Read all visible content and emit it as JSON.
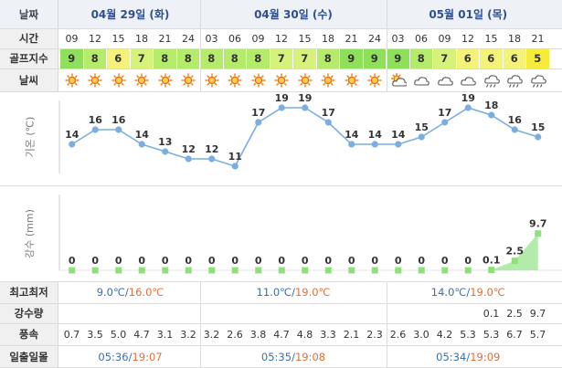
{
  "labels": {
    "date": "날짜",
    "time": "시간",
    "golf": "골프지수",
    "weather": "날씨",
    "temp_axis": "기온 (℃)",
    "rain_axis": "강수 (mm)",
    "minmax": "최고최저",
    "rain_amount": "강수량",
    "wind": "풍속",
    "sun": "일출일몰"
  },
  "dates": [
    "04월 29일 (화)",
    "04월 30일 (수)",
    "05월 01일 (목)"
  ],
  "times": [
    "09",
    "12",
    "15",
    "18",
    "21",
    "24",
    "03",
    "06",
    "09",
    "12",
    "15",
    "18",
    "21",
    "24",
    "03",
    "06",
    "09",
    "12",
    "15",
    "18",
    "21"
  ],
  "golf_index": [
    "9",
    "8",
    "6",
    "7",
    "8",
    "8",
    "8",
    "8",
    "8",
    "7",
    "7",
    "8",
    "9",
    "9",
    "9",
    "8",
    "7",
    "6",
    "6",
    "6",
    "5"
  ],
  "weather_icons": [
    "sun-icon",
    "sun-icon",
    "sun-icon",
    "sun-icon",
    "sun-icon",
    "sun-icon",
    "sun-icon",
    "sun-icon",
    "sun-icon",
    "sun-icon",
    "sun-icon",
    "sun-icon",
    "sun-icon",
    "sun-icon",
    "partly-cloudy-icon",
    "cloud-icon",
    "cloud-icon",
    "cloud-icon",
    "rain-cloud-icon",
    "rain-cloud-icon",
    "rain-cloud-icon"
  ],
  "colors": {
    "golf": {
      "9": "#8ee05a",
      "8": "#b5eb6a",
      "7": "#d7f27a",
      "6": "#f5f27a",
      "5": "#f5ec3a"
    },
    "temp_line": "#7aaee0",
    "rain_fill": "#a6e79b",
    "rain_marker": "#8fe07a"
  },
  "temp_chart": {
    "y_ticks": [
      "20",
      "10"
    ],
    "ylim": [
      10,
      20
    ],
    "values": [
      14,
      16,
      16,
      14,
      13,
      12,
      12,
      11,
      17,
      19,
      19,
      17,
      14,
      14,
      14,
      15,
      17,
      19,
      18,
      16,
      15
    ],
    "labels": [
      "14",
      "16",
      "16",
      "14",
      "13",
      "12",
      "12",
      "11",
      "17",
      "19",
      "19",
      "17",
      "14",
      "14",
      "14",
      "15",
      "17",
      "19",
      "18",
      "16",
      "15"
    ]
  },
  "rain_chart": {
    "y_ticks": [
      "20",
      "10",
      "0"
    ],
    "ylim": [
      0,
      20
    ],
    "values": [
      0,
      0,
      0,
      0,
      0,
      0,
      0,
      0,
      0,
      0,
      0,
      0,
      0,
      0,
      0,
      0,
      0,
      0,
      0.1,
      2.5,
      9.7
    ],
    "labels": [
      "0",
      "0",
      "0",
      "0",
      "0",
      "0",
      "0",
      "0",
      "0",
      "0",
      "0",
      "0",
      "0",
      "0",
      "0",
      "0",
      "0",
      "0",
      "0.1",
      "2.5",
      "9.7"
    ]
  },
  "minmax": [
    {
      "lo": "9.0℃",
      "sep": "/",
      "hi": "16.0℃"
    },
    {
      "lo": "11.0℃",
      "sep": "/",
      "hi": "19.0℃"
    },
    {
      "lo": "14.0℃",
      "sep": "/",
      "hi": "19.0℃"
    }
  ],
  "rain_amount": [
    "",
    "",
    "",
    "",
    "",
    "",
    "",
    "",
    "",
    "",
    "",
    "",
    "",
    "",
    "",
    "",
    "",
    "",
    "0.1",
    "2.5",
    "9.7"
  ],
  "wind": [
    "0.7",
    "3.5",
    "5.0",
    "4.7",
    "3.1",
    "3.2",
    "3.2",
    "2.6",
    "3.8",
    "4.7",
    "4.8",
    "3.3",
    "2.1",
    "2.3",
    "2.6",
    "3.0",
    "4.2",
    "5.3",
    "5.3",
    "6.7",
    "5.7"
  ],
  "sun": [
    {
      "rise": "05:36",
      "sep": "/",
      "set": "19:07"
    },
    {
      "rise": "05:35",
      "sep": "/",
      "set": "19:08"
    },
    {
      "rise": "05:34",
      "sep": "/",
      "set": "19:09"
    }
  ]
}
